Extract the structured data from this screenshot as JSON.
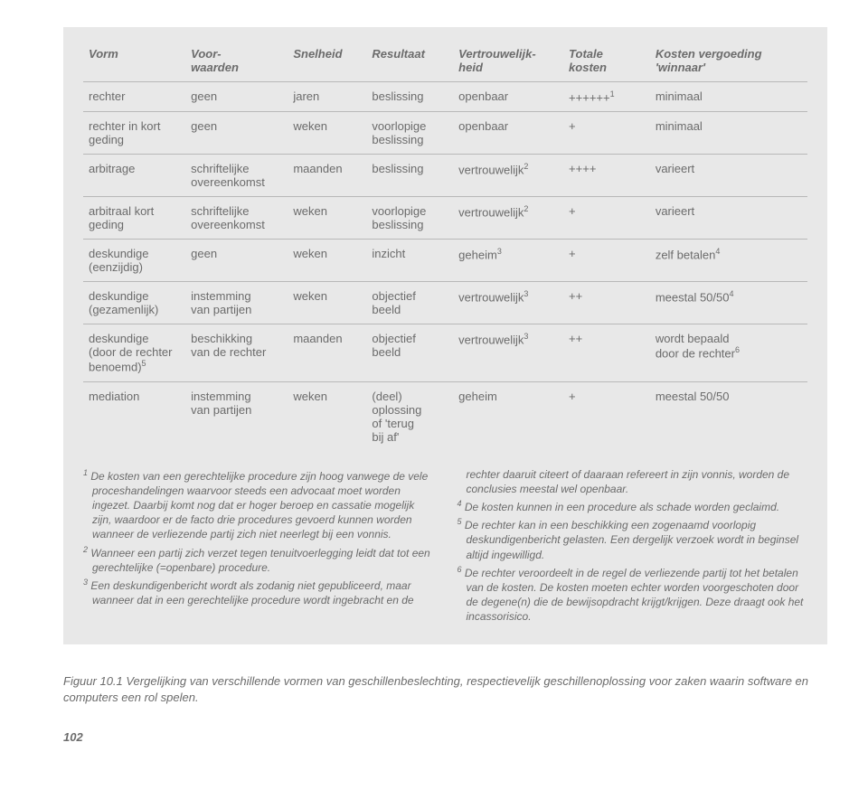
{
  "headers": {
    "c0": "Vorm",
    "c1": "Voor-\nwaarden",
    "c2": "Snelheid",
    "c3": "Resultaat",
    "c4": "Vertrouwelijk-\nheid",
    "c5": "Totale\nkosten",
    "c6": "Kosten vergoeding\n'winnaar'"
  },
  "rows": [
    {
      "c0": "rechter",
      "c1": "geen",
      "c2": "jaren",
      "c3": "beslissing",
      "c4": "openbaar",
      "c5": "++++++",
      "c5s": "1",
      "c6": "minimaal"
    },
    {
      "c0": "rechter in kort\ngeding",
      "c1": "geen",
      "c2": "weken",
      "c3": "voorlopige\nbeslissing",
      "c4": "openbaar",
      "c5": "+",
      "c6": "minimaal"
    },
    {
      "c0": "arbitrage",
      "c1": "schriftelijke\novereenkomst",
      "c2": "maanden",
      "c3": "beslissing",
      "c4": "vertrouwelijk",
      "c4s": "2",
      "c5": "++++",
      "c6": "varieert"
    },
    {
      "c0": "arbitraal kort\ngeding",
      "c1": "schriftelijke\novereenkomst",
      "c2": "weken",
      "c3": "voorlopige\nbeslissing",
      "c4": "vertrouwelijk",
      "c4s": "2",
      "c5": "+",
      "c6": "varieert"
    },
    {
      "c0": "deskundige\n(eenzijdig)",
      "c1": "geen",
      "c2": "weken",
      "c3": "inzicht",
      "c4": "geheim",
      "c4s": "3",
      "c5": "+",
      "c6": "zelf betalen",
      "c6s": "4"
    },
    {
      "c0": "deskundige\n(gezamenlijk)",
      "c1": "instemming\nvan partijen",
      "c2": "weken",
      "c3": "objectief\nbeeld",
      "c4": "vertrouwelijk",
      "c4s": "3",
      "c5": "++",
      "c6": "meestal 50/50",
      "c6s": "4"
    },
    {
      "c0": "deskundige\n(door de rechter\nbenoemd)",
      "c0s": "5",
      "c1": "beschikking\nvan de rechter",
      "c2": "maanden",
      "c3": "objectief\nbeeld",
      "c4": "vertrouwelijk",
      "c4s": "3",
      "c5": "++",
      "c6": "wordt bepaald\ndoor de rechter",
      "c6s": "6"
    },
    {
      "c0": "mediation",
      "c1": "instemming\nvan partijen",
      "c2": "weken",
      "c3": "(deel)\noplossing\nof 'terug\nbij af'",
      "c4": "geheim",
      "c5": "+",
      "c6": "meestal 50/50"
    }
  ],
  "footnotes": {
    "n1": {
      "num": "1",
      "text": "De kosten van een gerechtelijke procedure zijn hoog vanwege de vele proceshandelingen waarvoor steeds een advocaat moet worden ingezet. Daarbij komt nog dat er hoger beroep en cassatie mogelijk zijn, waardoor er de facto drie procedures gevoerd kunnen worden wanneer de verliezende partij zich niet neerlegt bij een vonnis."
    },
    "n2": {
      "num": "2",
      "text": "Wanneer een partij zich verzet tegen tenuitvoerlegging leidt dat tot een gerechtelijke (=openbare) procedure."
    },
    "n3": {
      "num": "3",
      "text": "Een deskundigenbericht wordt als zodanig niet gepubliceerd, maar wanneer dat in een gerechtelijke procedure wordt ingebracht en de rechter daaruit citeert of daaraan refereert in zijn vonnis, worden de conclusies meestal wel openbaar."
    },
    "n4": {
      "num": "4",
      "text": "De kosten kunnen in een procedure als schade worden geclaimd."
    },
    "n5": {
      "num": "5",
      "text": "De rechter kan in een beschikking een zogenaamd voorlopig deskundigenbericht gelasten. Een dergelijk verzoek wordt in beginsel altijd ingewilligd."
    },
    "n6": {
      "num": "6",
      "text": "De rechter veroordeelt in de regel de verliezende partij tot het betalen van de kosten. De kosten moeten echter worden voorgeschoten door de degene(n) die de bewijsopdracht krijgt/krijgen. Deze draagt ook het incassorisico."
    }
  },
  "caption": "Figuur 10.1 Vergelijking van verschillende vormen van geschillenbeslechting, respectievelijk geschillenoplossing voor zaken waarin software en computers een rol spelen.",
  "pagenum": "102"
}
